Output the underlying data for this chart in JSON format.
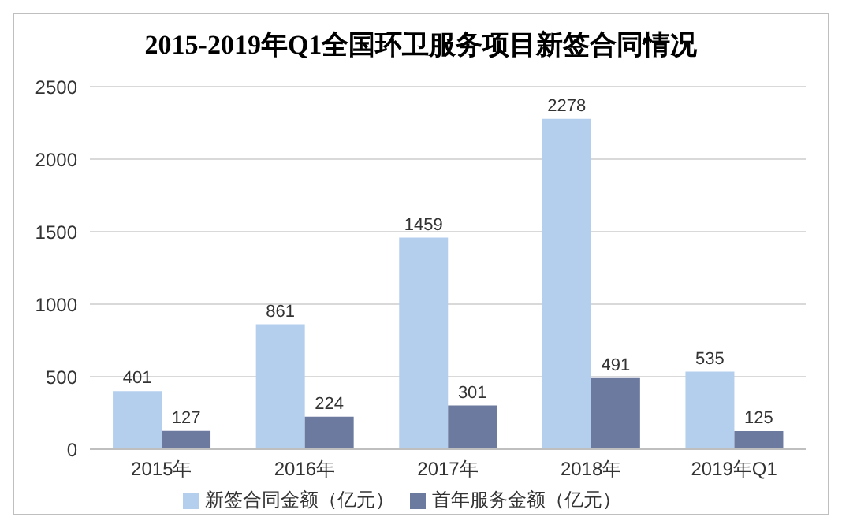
{
  "chart_data": {
    "type": "bar",
    "title": "2015-2019年Q1全国环卫服务项目新签合同情况",
    "categories": [
      "2015年",
      "2016年",
      "2017年",
      "2018年",
      "2019年Q1"
    ],
    "series": [
      {
        "name": "新签合同金额（亿元）",
        "color": "#b4cfee",
        "values": [
          401,
          861,
          1459,
          2278,
          535
        ]
      },
      {
        "name": "首年服务金额（亿元）",
        "color": "#6b7a9e",
        "values": [
          127,
          224,
          301,
          491,
          125
        ]
      }
    ],
    "ylim": [
      0,
      2500
    ],
    "yticks": [
      0,
      500,
      1000,
      1500,
      2000,
      2500
    ],
    "grid": "y",
    "legend": "bottom",
    "data_labels": true
  }
}
